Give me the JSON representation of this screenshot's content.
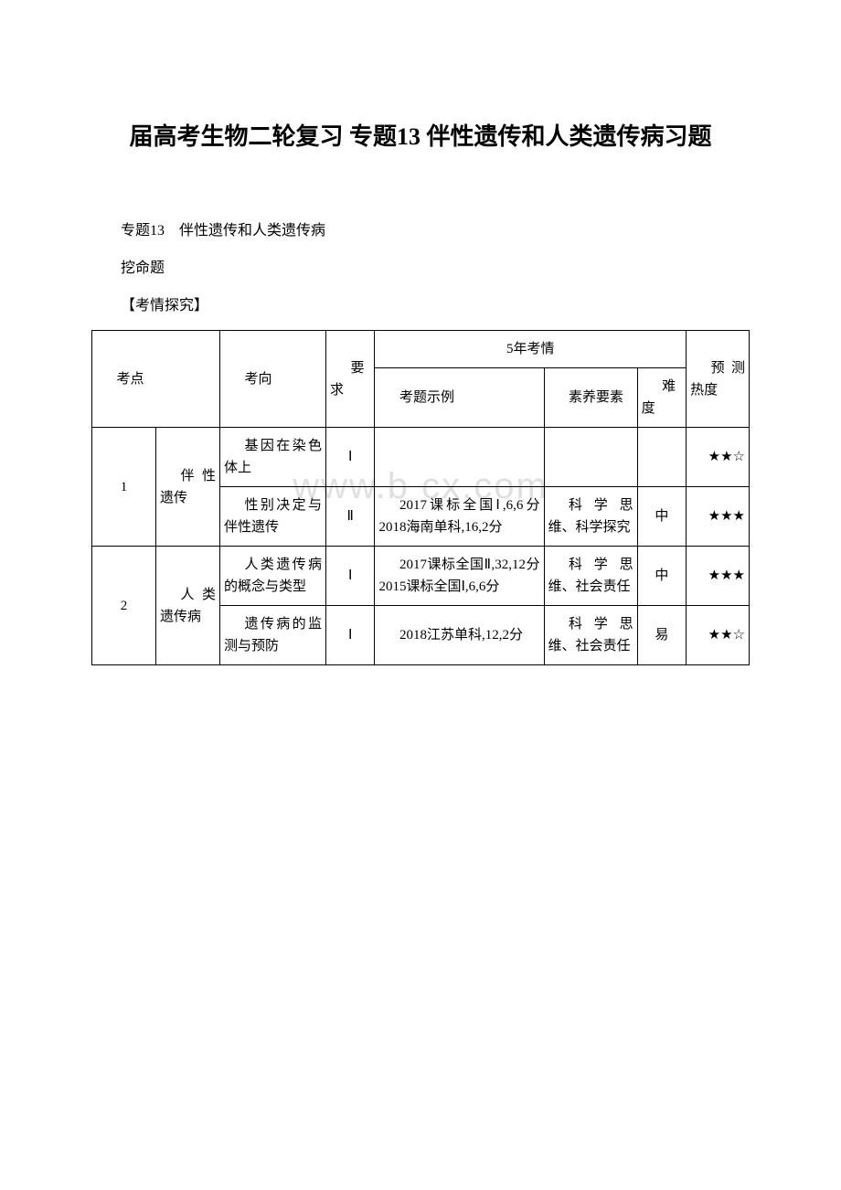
{
  "title": "届高考生物二轮复习 专题13 伴性遗传和人类遗传病习题",
  "line1": "专题13　伴性遗传和人类遗传病",
  "line2": "挖命题",
  "line3": "【考情探究】",
  "watermark": "www.b    cx.com",
  "header": {
    "col1": "考点",
    "col2": "考向",
    "col3": "要求",
    "col4": "5年考情",
    "col4a": "考题示例",
    "col4b": "素养要素",
    "col4c": "难度",
    "col5": "预测热度"
  },
  "row1": {
    "num": "1",
    "topic": "伴性遗传",
    "dir1": "基因在染色体上",
    "req1": "Ⅰ",
    "ex1": "",
    "ess1": "",
    "diff1": "",
    "heat1": "★★☆",
    "dir2": "性别决定与伴性遗传",
    "req2": "Ⅱ",
    "ex2": "2017课标全国Ⅰ,6,6分　2018海南单科,16,2分",
    "ess2": "科学思维、科学探究",
    "diff2": "中",
    "heat2": "★★★"
  },
  "row2": {
    "num": "2",
    "topic": "人类遗传病",
    "dir1": "人类遗传病的概念与类型",
    "req1": "Ⅰ",
    "ex1": "2017课标全国Ⅱ,32,12分　2015课标全国Ⅰ,6,6分",
    "ess1": "科学思维、社会责任",
    "diff1": "中",
    "heat1": "★★★",
    "dir2": "遗传病的监测与预防",
    "req2": "Ⅰ",
    "ex2": "2018江苏单科,12,2分",
    "ess2": "科学思维、社会责任",
    "diff2": "易",
    "heat2": "★★☆"
  }
}
